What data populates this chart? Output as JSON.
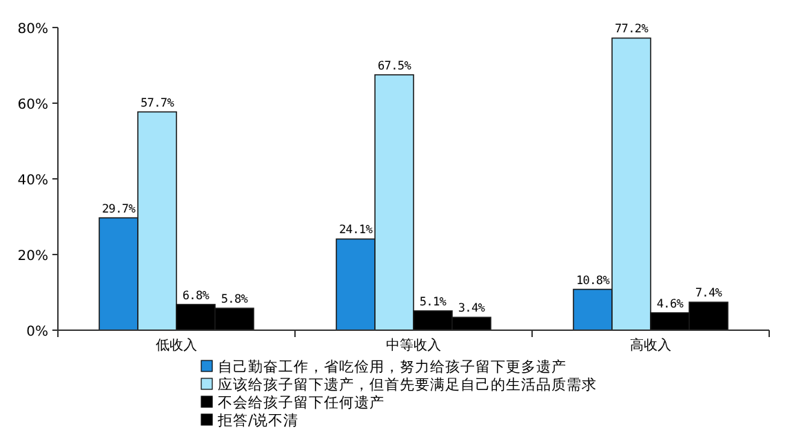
{
  "chart_data": {
    "type": "bar",
    "categories": [
      "低收入",
      "中等收入",
      "高收入"
    ],
    "series": [
      {
        "name": "自己勤奋工作，省吃俭用，努力给孩子留下更多遗产",
        "color": "#1f8bdb",
        "values": [
          29.7,
          24.1,
          10.8
        ],
        "value_labels": [
          "29.7%",
          "24.1%",
          "10.8%"
        ]
      },
      {
        "name": "应该给孩子留下遗产，但首先要满足自己的生活品质需求",
        "color": "#a6e4fa",
        "values": [
          57.7,
          67.5,
          77.2
        ],
        "value_labels": [
          "57.7%",
          "67.5%",
          "77.2%"
        ]
      },
      {
        "name": "不会给孩子留下任何遗产",
        "color": "#000000",
        "values": [
          6.8,
          5.1,
          4.6
        ],
        "value_labels": [
          "6.8%",
          "5.1%",
          "4.6%"
        ]
      },
      {
        "name": "拒答/说不清",
        "color": "#000000",
        "values": [
          5.8,
          3.4,
          7.4
        ],
        "value_labels": [
          "5.8%",
          "3.4%",
          "7.4%"
        ]
      }
    ],
    "ylim": [
      0,
      80
    ],
    "yticks": [
      {
        "value": 0,
        "label": "0%"
      },
      {
        "value": 20,
        "label": "20%"
      },
      {
        "value": 40,
        "label": "40%"
      },
      {
        "value": 60,
        "label": "60%"
      },
      {
        "value": 80,
        "label": "80%"
      }
    ],
    "grid": false,
    "legend": "bottom"
  }
}
